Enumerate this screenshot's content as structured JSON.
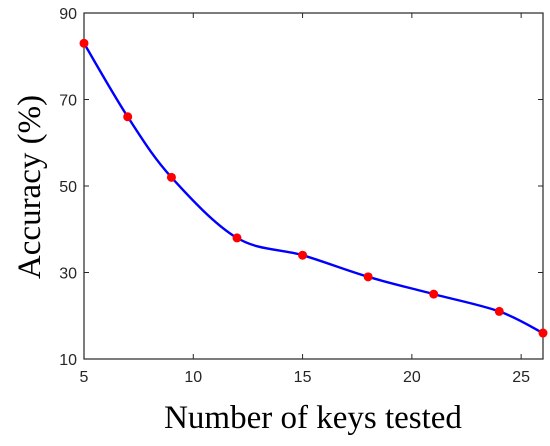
{
  "chart_data": {
    "type": "line",
    "title": "",
    "xlabel": "Number of keys tested",
    "ylabel": "Accuracy (%)",
    "xlim": [
      5,
      26
    ],
    "ylim": [
      10,
      90
    ],
    "xticks": [
      5,
      10,
      15,
      20,
      25
    ],
    "yticks": [
      10,
      30,
      50,
      70,
      90
    ],
    "grid": false,
    "legend": "none",
    "series": [
      {
        "x": [
          5,
          7,
          9,
          12,
          15,
          18,
          21,
          24,
          26
        ],
        "y": [
          83,
          66,
          52,
          38,
          34,
          29,
          25,
          21,
          16
        ],
        "line_color": "#0000ff",
        "marker_color": "#ff0000"
      }
    ]
  }
}
